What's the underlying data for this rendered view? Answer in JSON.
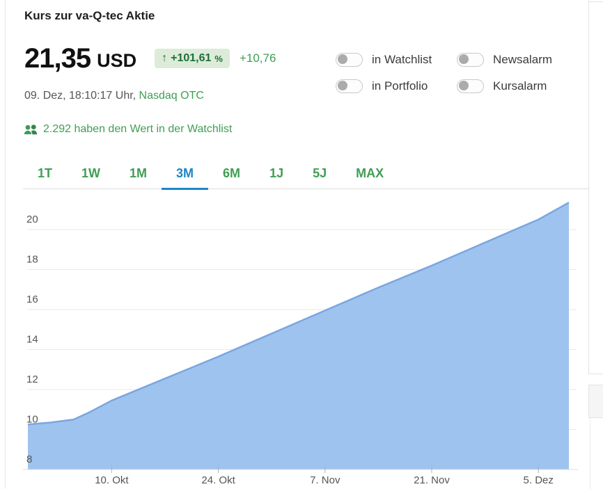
{
  "page": {
    "title": "Kurs zur va-Q-tec Aktie"
  },
  "quote": {
    "price": "21,35",
    "currency": "USD",
    "arrow": "↑",
    "change_percent": "+101,61",
    "percent_sign": "%",
    "change_abs": "+10,76",
    "timestamp": "09. Dez, 18:10:17 Uhr, ",
    "exchange": "Nasdaq OTC",
    "watchlist_count_text": "2.292 haben den Wert in der Watchlist"
  },
  "toggles": [
    {
      "label": "in Watchlist",
      "state": "off"
    },
    {
      "label": "Newsalarm",
      "state": "off"
    },
    {
      "label": "in Portfolio",
      "state": "off"
    },
    {
      "label": "Kursalarm",
      "state": "off"
    }
  ],
  "range_tabs": {
    "active": "3M",
    "items": [
      {
        "label": "1T",
        "active": false
      },
      {
        "label": "1W",
        "active": false
      },
      {
        "label": "1M",
        "active": false
      },
      {
        "label": "3M",
        "active": true
      },
      {
        "label": "6M",
        "active": false
      },
      {
        "label": "1J",
        "active": false
      },
      {
        "label": "5J",
        "active": false
      },
      {
        "label": "MAX",
        "active": false
      }
    ]
  },
  "colors": {
    "accent_green": "#3f9e53",
    "badge_bg": "#dcecd9",
    "badge_text": "#1d6e3a",
    "active_tab_blue": "#1b86c8",
    "chart_fill": "#9ec3ee",
    "chart_line": "#7aa6e0",
    "grid_line": "#e9e9e9",
    "axis_text": "#555555"
  },
  "chart_data": {
    "type": "area",
    "title": "va-Q-tec share price, 3M range (USD)",
    "x_unit": "days since range start",
    "points": [
      {
        "day": 0,
        "value": 10.25
      },
      {
        "day": 3,
        "value": 10.35
      },
      {
        "day": 6,
        "value": 10.5
      },
      {
        "day": 8,
        "value": 10.85
      },
      {
        "day": 11,
        "value": 11.45
      },
      {
        "day": 18,
        "value": 12.55
      },
      {
        "day": 25,
        "value": 13.65
      },
      {
        "day": 32,
        "value": 14.8
      },
      {
        "day": 39,
        "value": 15.95
      },
      {
        "day": 46,
        "value": 17.1
      },
      {
        "day": 53,
        "value": 18.2
      },
      {
        "day": 60,
        "value": 19.35
      },
      {
        "day": 67,
        "value": 20.5
      },
      {
        "day": 71,
        "value": 21.35
      }
    ],
    "x_ticks": [
      {
        "day": 11,
        "label": "10. Okt"
      },
      {
        "day": 25,
        "label": "24. Okt"
      },
      {
        "day": 39,
        "label": "7. Nov"
      },
      {
        "day": 53,
        "label": "21. Nov"
      },
      {
        "day": 67,
        "label": "5. Dez"
      }
    ],
    "y_ticks": [
      8,
      10,
      12,
      14,
      16,
      18,
      20
    ],
    "ylim": [
      8,
      22.05
    ],
    "grid": true,
    "legend": "none"
  }
}
